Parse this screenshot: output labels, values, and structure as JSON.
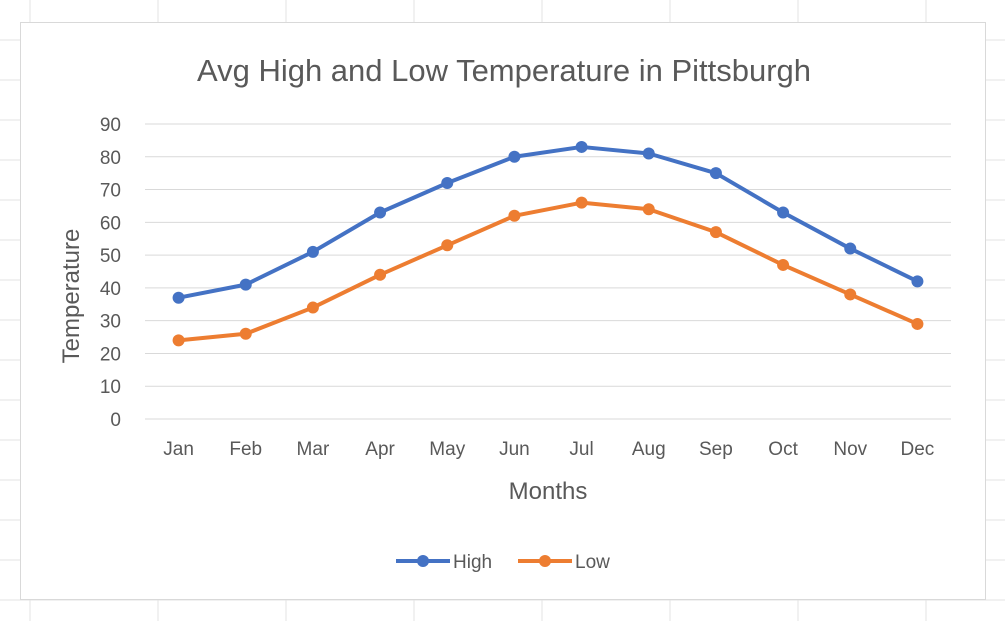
{
  "chart_data": {
    "type": "line",
    "title": "Avg High and Low Temperature in Pittsburgh",
    "xlabel": "Months",
    "ylabel": "Temperature",
    "categories": [
      "Jan",
      "Feb",
      "Mar",
      "Apr",
      "May",
      "Jun",
      "Jul",
      "Aug",
      "Sep",
      "Oct",
      "Nov",
      "Dec"
    ],
    "ylim": [
      0,
      90
    ],
    "yticks": [
      0,
      10,
      20,
      30,
      40,
      50,
      60,
      70,
      80,
      90
    ],
    "grid": true,
    "legend": "bottom",
    "series": [
      {
        "name": "High",
        "color": "#4472C4",
        "values": [
          37,
          41,
          51,
          63,
          72,
          80,
          83,
          81,
          75,
          63,
          52,
          42
        ]
      },
      {
        "name": "Low",
        "color": "#ED7D31",
        "values": [
          24,
          26,
          34,
          44,
          53,
          62,
          66,
          64,
          57,
          47,
          38,
          29
        ]
      }
    ]
  }
}
